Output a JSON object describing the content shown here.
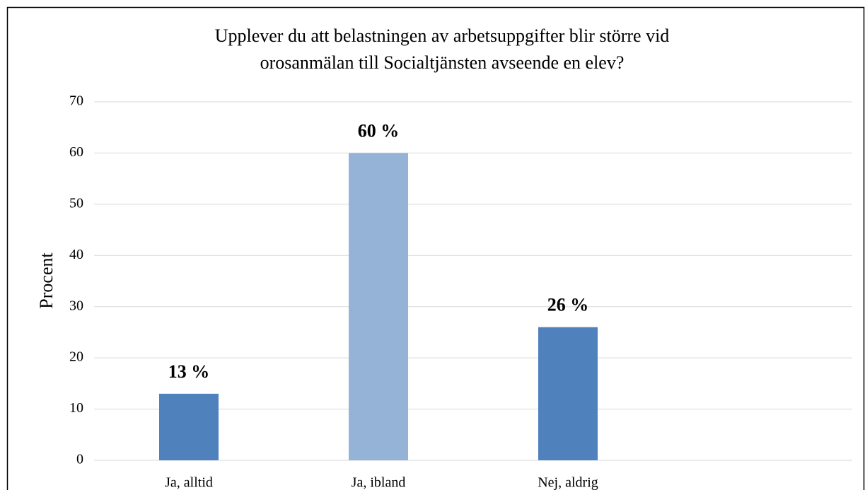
{
  "chart_data": {
    "type": "bar",
    "title": [
      "Upplever du att belastningen av arbetsuppgifter blir större vid",
      "orosanmälan till Socialtjänsten avseende en elev?"
    ],
    "ylabel": "Procent",
    "categories": [
      "Ja, alltid",
      "Ja, ibland",
      "Nej, aldrig",
      null
    ],
    "values": [
      13,
      60,
      26,
      null
    ],
    "value_labels": [
      "13 %",
      "60 %",
      "26 %",
      null
    ],
    "colors": [
      "#4f81bd",
      "#95b3d7",
      "#4f81bd",
      null
    ],
    "ylim": [
      0,
      70
    ],
    "yticks": [
      0,
      10,
      20,
      30,
      40,
      50,
      60,
      70
    ],
    "grid": true
  }
}
